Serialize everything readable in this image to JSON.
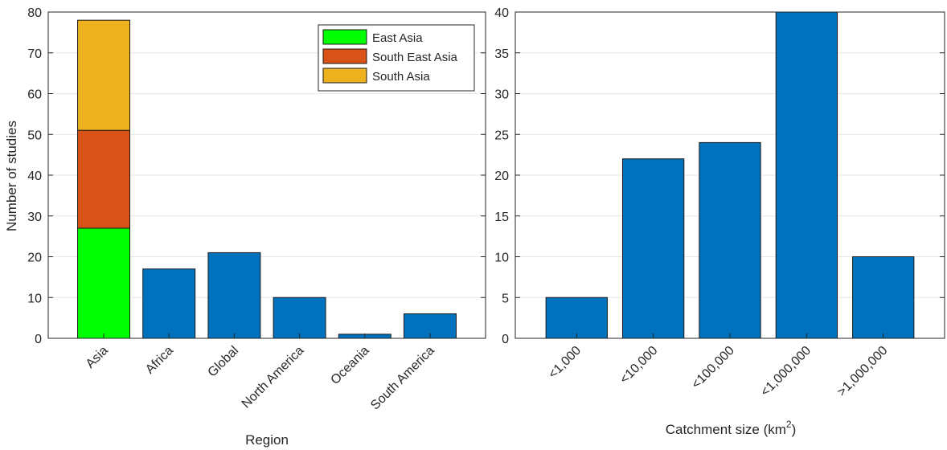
{
  "chart_data": [
    {
      "type": "bar",
      "stacked": true,
      "categories": [
        "Asia",
        "Africa",
        "Global",
        "North America",
        "Oceania",
        "South America"
      ],
      "series": [
        {
          "name": "East Asia",
          "color": "#00ff00",
          "values": [
            27,
            null,
            null,
            null,
            null,
            null
          ]
        },
        {
          "name": "South East Asia",
          "color": "#d95319",
          "values": [
            24,
            null,
            null,
            null,
            null,
            null
          ]
        },
        {
          "name": "South Asia",
          "color": "#edb120",
          "values": [
            27,
            null,
            null,
            null,
            null,
            null
          ]
        },
        {
          "color": "#0072bd",
          "values": [
            null,
            17,
            21,
            10,
            1,
            6
          ]
        }
      ],
      "xlabel": "Region",
      "ylabel": "Number of studies",
      "ylim": [
        0,
        80
      ],
      "yticks": [
        0,
        10,
        20,
        30,
        40,
        50,
        60,
        70,
        80
      ],
      "grid": "horizontal",
      "legend_placement": "top-right"
    },
    {
      "type": "bar",
      "categories": [
        "<1,000",
        "<10,000",
        "<100,000",
        "<1,000,000",
        ">1,000,000"
      ],
      "values": [
        5,
        22,
        24,
        40,
        10
      ],
      "color": "#0072bd",
      "xlabel": "Catchment size (km",
      "xlabel_superscript": "2",
      "xlabel_suffix": ")",
      "ylim": [
        0,
        40
      ],
      "yticks": [
        0,
        5,
        10,
        15,
        20,
        25,
        30,
        35,
        40
      ],
      "grid": "horizontal"
    }
  ]
}
